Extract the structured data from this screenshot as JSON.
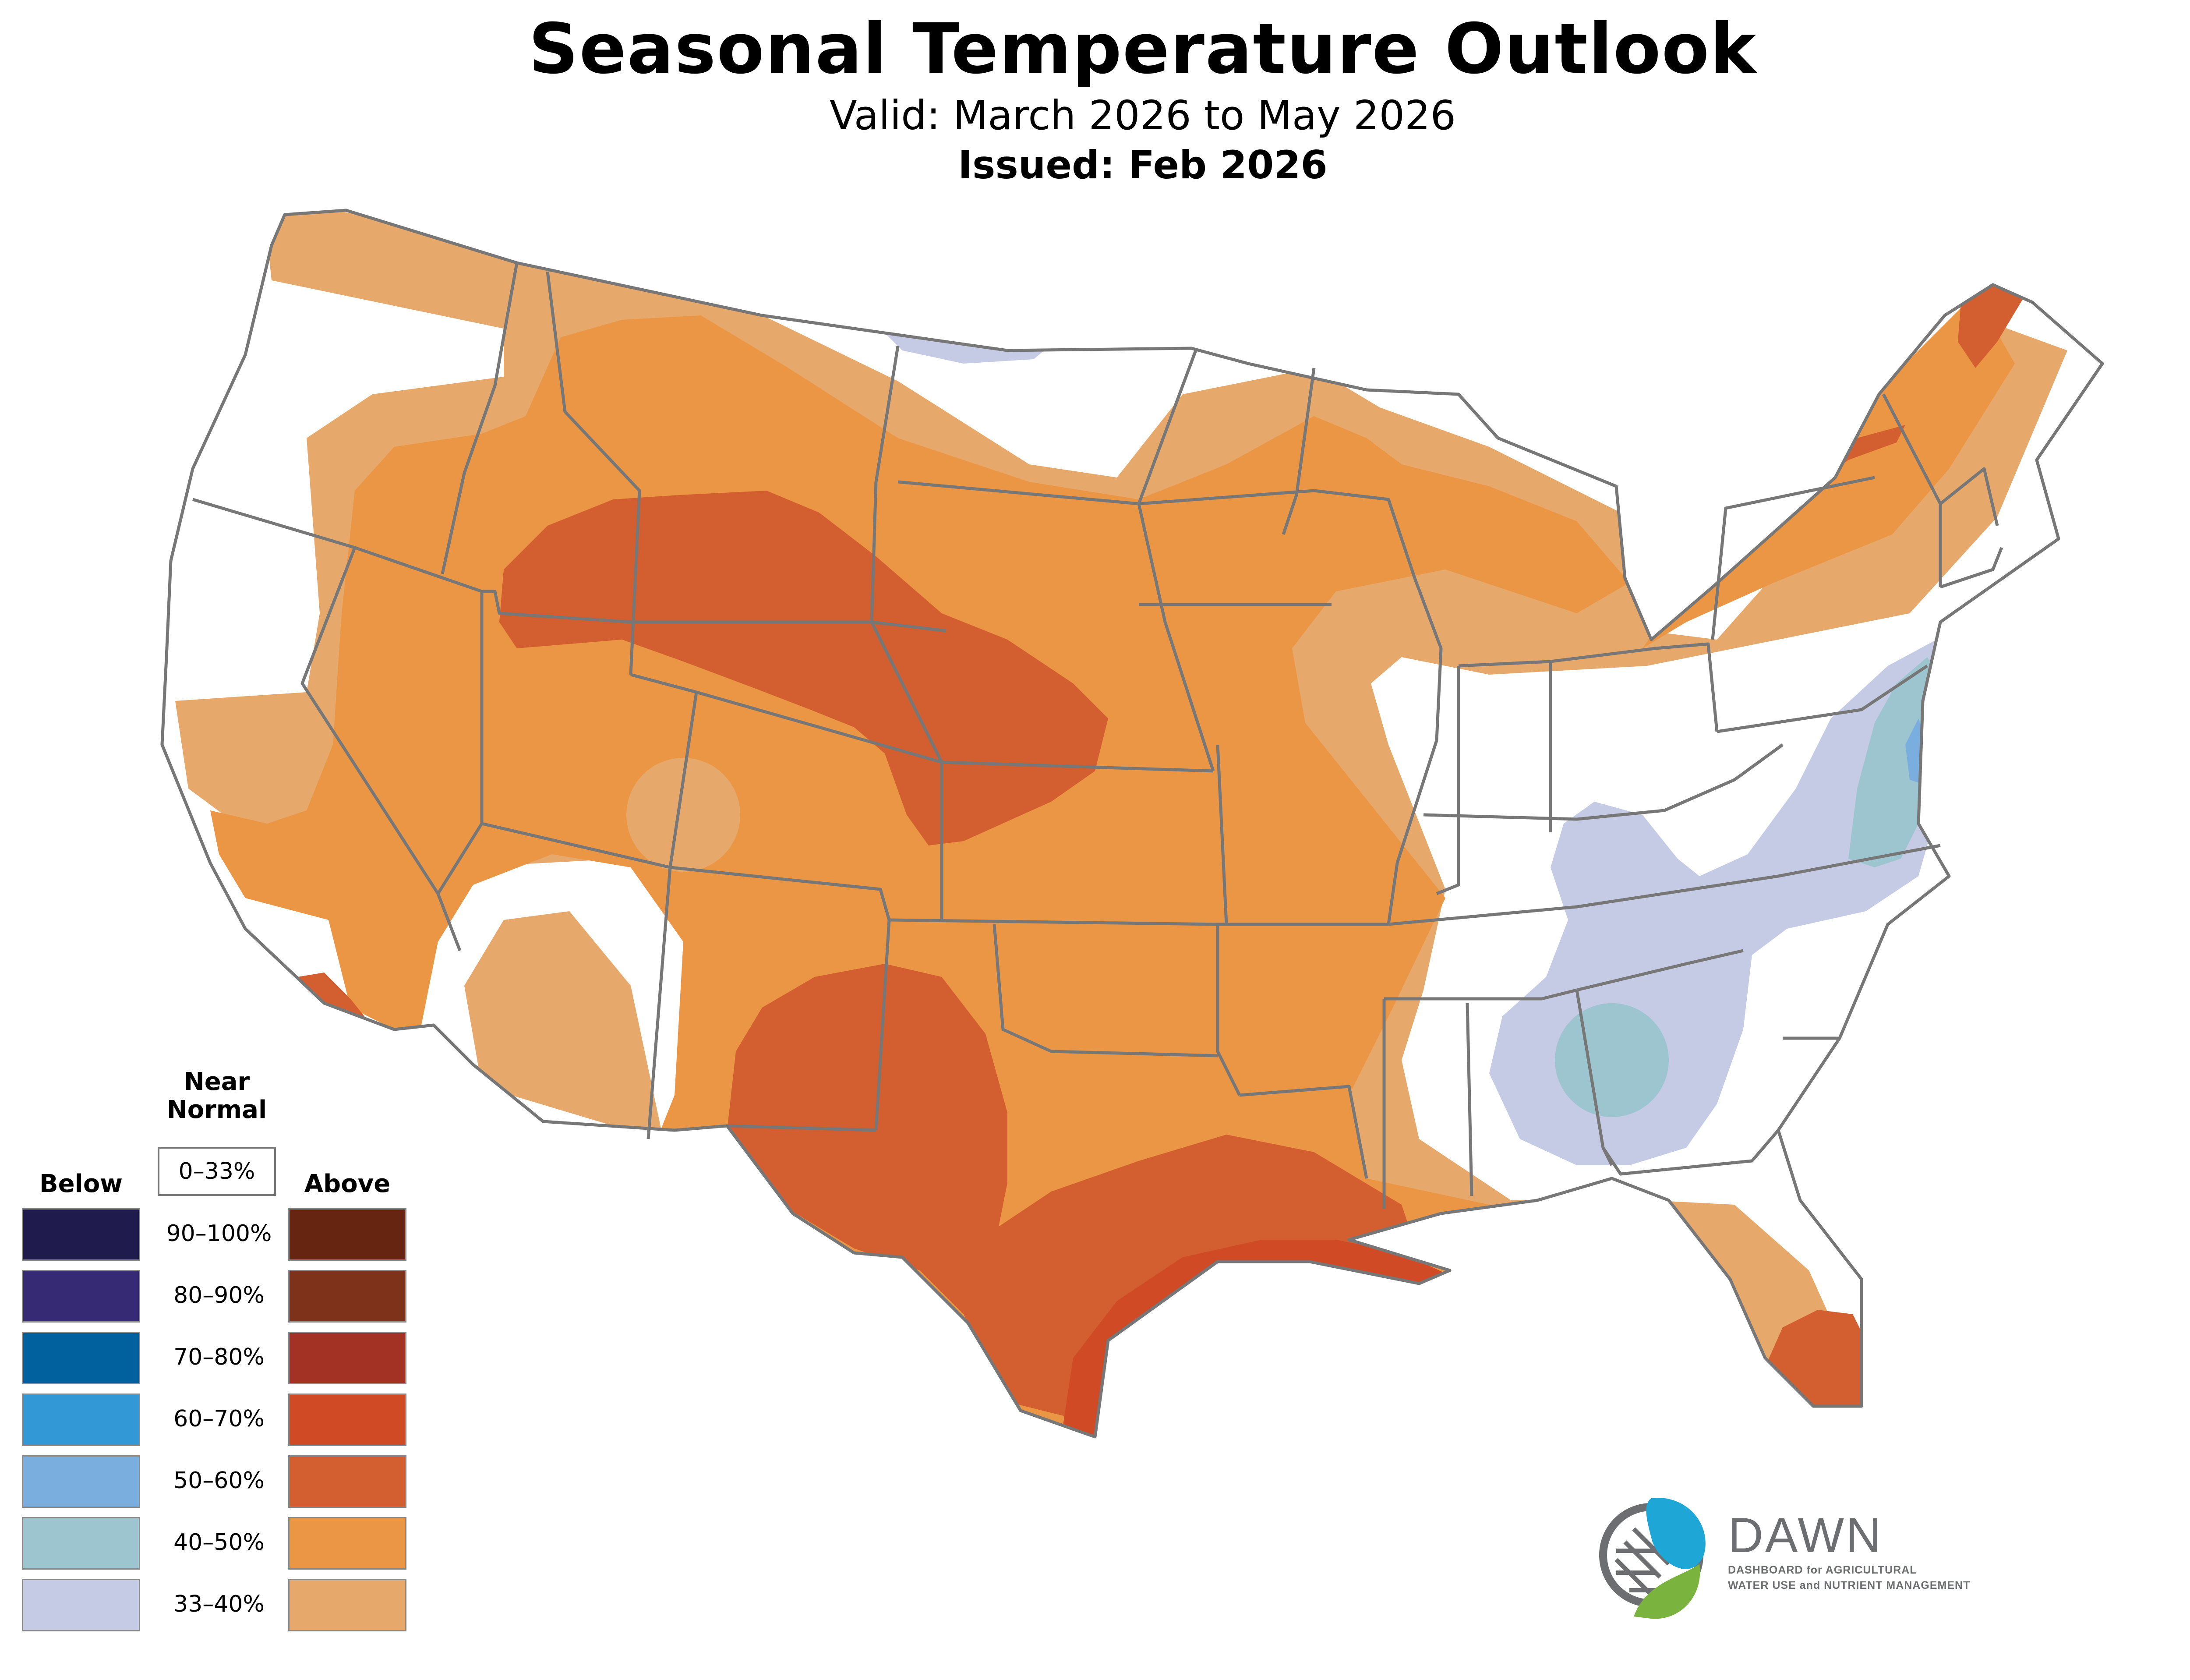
{
  "header": {
    "title": "Seasonal Temperature Outlook",
    "valid": "Valid: March 2026 to May 2026",
    "issued": "Issued: Feb 2026"
  },
  "legend": {
    "near_heading_1": "Near",
    "near_heading_2": "Normal",
    "near_range": "0–33%",
    "below_heading": "Below",
    "above_heading": "Above",
    "rows": [
      {
        "range": "90–100%",
        "below_color": "#1f1c4d",
        "above_color": "#662510"
      },
      {
        "range": "80–90%",
        "below_color": "#352a73",
        "above_color": "#7f321a"
      },
      {
        "range": "70–80%",
        "below_color": "#00619e",
        "above_color": "#a33224"
      },
      {
        "range": "60–70%",
        "below_color": "#3299d6",
        "above_color": "#cf4a25"
      },
      {
        "range": "50–60%",
        "below_color": "#7aaede",
        "above_color": "#d35e30"
      },
      {
        "range": "40–50%",
        "below_color": "#9dc5d0",
        "above_color": "#eb9645"
      },
      {
        "range": "33–40%",
        "below_color": "#c5cbe4",
        "above_color": "#e6a96b"
      }
    ]
  },
  "map": {
    "region": "Contiguous United States",
    "colors": {
      "above_33_40": "#e6a96b",
      "above_40_50": "#eb9645",
      "above_50_60": "#d35e30",
      "above_60_70": "#cf4a25",
      "below_33_40": "#c5cbe4",
      "below_40_50": "#9dc5d0",
      "below_50_60": "#7aaede",
      "border": "#777777"
    }
  },
  "logo": {
    "name": "DAWN",
    "tagline_1": "DASHBOARD for AGRICULTURAL",
    "tagline_2": "WATER USE and NUTRIENT MANAGEMENT",
    "colors": {
      "blue": "#1ea7d6",
      "green": "#7ab33e",
      "gray": "#6d6e71"
    }
  }
}
